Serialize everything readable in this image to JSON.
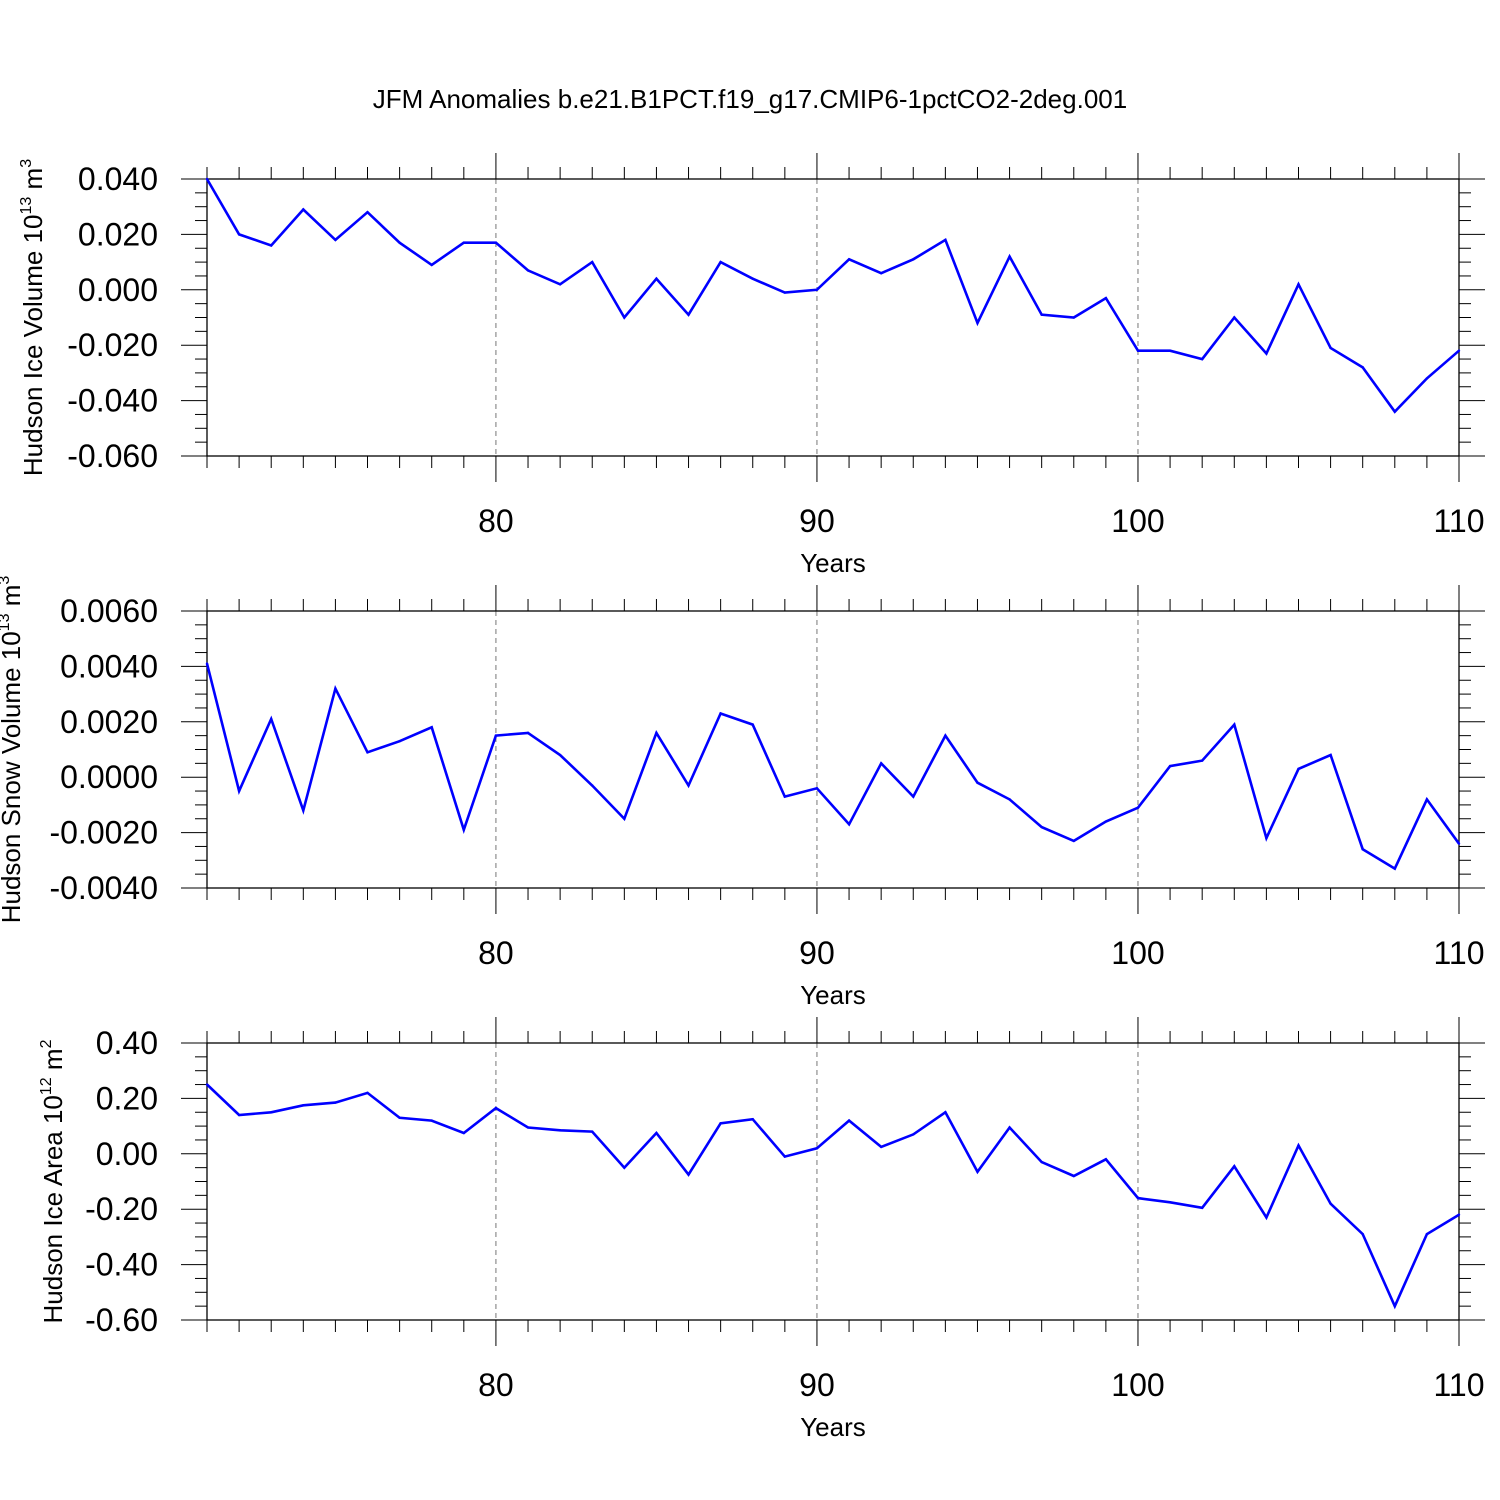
{
  "title": "JFM Anomalies b.e21.B1PCT.f19_g17.CMIP6-1pctCO2-2deg.001",
  "line_color": "#0000ff",
  "chart_data": [
    {
      "type": "line",
      "title": "JFM Anomalies b.e21.B1PCT.f19_g17.CMIP6-1pctCO2-2deg.001",
      "ylabel": "Hudson Ice Volume 10",
      "ylabel_exp": "13",
      "ylabel_unit": " m",
      "ylabel_unit_exp": "3",
      "xlabel": "Years",
      "xlim": [
        71,
        110
      ],
      "ylim": [
        -0.06,
        0.04
      ],
      "xticks": [
        80,
        90,
        100,
        110
      ],
      "xticklabels": [
        "80",
        "90",
        "100",
        "110"
      ],
      "yticks": [
        0.04,
        0.02,
        0.0,
        -0.02,
        -0.04,
        -0.06
      ],
      "yticklabels": [
        "0.040",
        "0.020",
        "0.000",
        "-0.020",
        "-0.040",
        "-0.060"
      ],
      "grid": "vertical dashed at major x ticks",
      "x": [
        71,
        72,
        73,
        74,
        75,
        76,
        77,
        78,
        79,
        80,
        81,
        82,
        83,
        84,
        85,
        86,
        87,
        88,
        89,
        90,
        91,
        92,
        93,
        94,
        95,
        96,
        97,
        98,
        99,
        100,
        101,
        102,
        103,
        104,
        105,
        106,
        107,
        108,
        109,
        110
      ],
      "y": [
        0.04,
        0.02,
        0.016,
        0.029,
        0.018,
        0.028,
        0.017,
        0.009,
        0.017,
        0.017,
        0.007,
        0.002,
        0.01,
        -0.01,
        0.004,
        -0.009,
        0.01,
        0.004,
        -0.001,
        0.0,
        0.011,
        0.006,
        0.011,
        0.018,
        -0.012,
        0.012,
        -0.009,
        -0.01,
        -0.003,
        -0.022,
        -0.022,
        -0.025,
        -0.01,
        -0.023,
        0.002,
        -0.021,
        -0.028,
        -0.044,
        -0.032,
        -0.022
      ]
    },
    {
      "type": "line",
      "ylabel": "Hudson Snow Volume 10",
      "ylabel_exp": "13",
      "ylabel_unit": " m",
      "ylabel_unit_exp": "3",
      "xlabel": "Years",
      "xlim": [
        71,
        110
      ],
      "ylim": [
        -0.004,
        0.006
      ],
      "xticks": [
        80,
        90,
        100,
        110
      ],
      "xticklabels": [
        "80",
        "90",
        "100",
        "110"
      ],
      "yticks": [
        0.006,
        0.004,
        0.002,
        0.0,
        -0.002,
        -0.004
      ],
      "yticklabels": [
        "0.0060",
        "0.0040",
        "0.0020",
        "0.0000",
        "-0.0020",
        "-0.0040"
      ],
      "grid": "vertical dashed at major x ticks",
      "x": [
        71,
        72,
        73,
        74,
        75,
        76,
        77,
        78,
        79,
        80,
        81,
        82,
        83,
        84,
        85,
        86,
        87,
        88,
        89,
        90,
        91,
        92,
        93,
        94,
        95,
        96,
        97,
        98,
        99,
        100,
        101,
        102,
        103,
        104,
        105,
        106,
        107,
        108,
        109,
        110
      ],
      "y": [
        0.0041,
        -0.0005,
        0.0021,
        -0.0012,
        0.0032,
        0.0009,
        0.0013,
        0.0018,
        -0.0019,
        0.0015,
        0.0016,
        0.0008,
        -0.0003,
        -0.0015,
        0.0016,
        -0.0003,
        0.0023,
        0.0019,
        -0.0007,
        -0.0004,
        -0.0017,
        0.0005,
        -0.0007,
        0.0015,
        -0.0002,
        -0.0008,
        -0.0018,
        -0.0023,
        -0.0016,
        -0.0011,
        0.0004,
        0.0006,
        0.0019,
        -0.0022,
        0.0003,
        0.0008,
        -0.0026,
        -0.0033,
        -0.0008,
        -0.0024
      ]
    },
    {
      "type": "line",
      "ylabel": "Hudson Ice Area 10",
      "ylabel_exp": "12",
      "ylabel_unit": " m",
      "ylabel_unit_exp": "2",
      "xlabel": "Years",
      "xlim": [
        71,
        110
      ],
      "ylim": [
        -0.6,
        0.4
      ],
      "xticks": [
        80,
        90,
        100,
        110
      ],
      "xticklabels": [
        "80",
        "90",
        "100",
        "110"
      ],
      "yticks": [
        0.4,
        0.2,
        0.0,
        -0.2,
        -0.4,
        -0.6
      ],
      "yticklabels": [
        "0.40",
        "0.20",
        "0.00",
        "-0.20",
        "-0.40",
        "-0.60"
      ],
      "grid": "vertical dashed at major x ticks",
      "x": [
        71,
        72,
        73,
        74,
        75,
        76,
        77,
        78,
        79,
        80,
        81,
        82,
        83,
        84,
        85,
        86,
        87,
        88,
        89,
        90,
        91,
        92,
        93,
        94,
        95,
        96,
        97,
        98,
        99,
        100,
        101,
        102,
        103,
        104,
        105,
        106,
        107,
        108,
        109,
        110
      ],
      "y": [
        0.25,
        0.14,
        0.15,
        0.175,
        0.185,
        0.22,
        0.13,
        0.12,
        0.075,
        0.165,
        0.095,
        0.085,
        0.08,
        -0.05,
        0.075,
        -0.075,
        0.11,
        0.125,
        -0.01,
        0.02,
        0.12,
        0.025,
        0.07,
        0.15,
        -0.065,
        0.095,
        -0.03,
        -0.08,
        -0.02,
        -0.16,
        -0.175,
        -0.195,
        -0.045,
        -0.23,
        0.03,
        -0.18,
        -0.29,
        -0.55,
        -0.29,
        -0.22
      ]
    }
  ]
}
